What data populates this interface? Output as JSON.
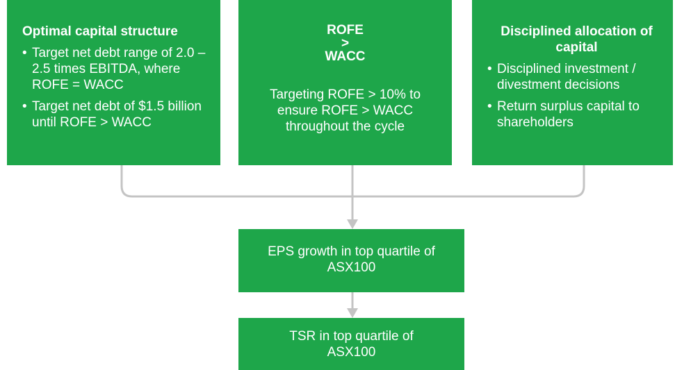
{
  "boxes": [
    {
      "title": "Optimal capital structure",
      "bullets": [
        "Target net debt range of 2.0 – 2.5 times EBITDA, where ROFE = WACC",
        "Target net debt of $1.5 billion until ROFE > WACC"
      ]
    },
    {
      "title_lines": [
        "ROFE",
        ">",
        "WACC"
      ],
      "body": "Targeting ROFE > 10% to ensure ROFE > WACC throughout the cycle"
    },
    {
      "title": "Disciplined allocation of capital",
      "bullets": [
        "Disciplined investment / divestment decisions",
        "Return surplus capital to shareholders"
      ]
    }
  ],
  "outcomes": [
    "EPS growth in top quartile of ASX100",
    "TSR in top quartile of ASX100"
  ]
}
